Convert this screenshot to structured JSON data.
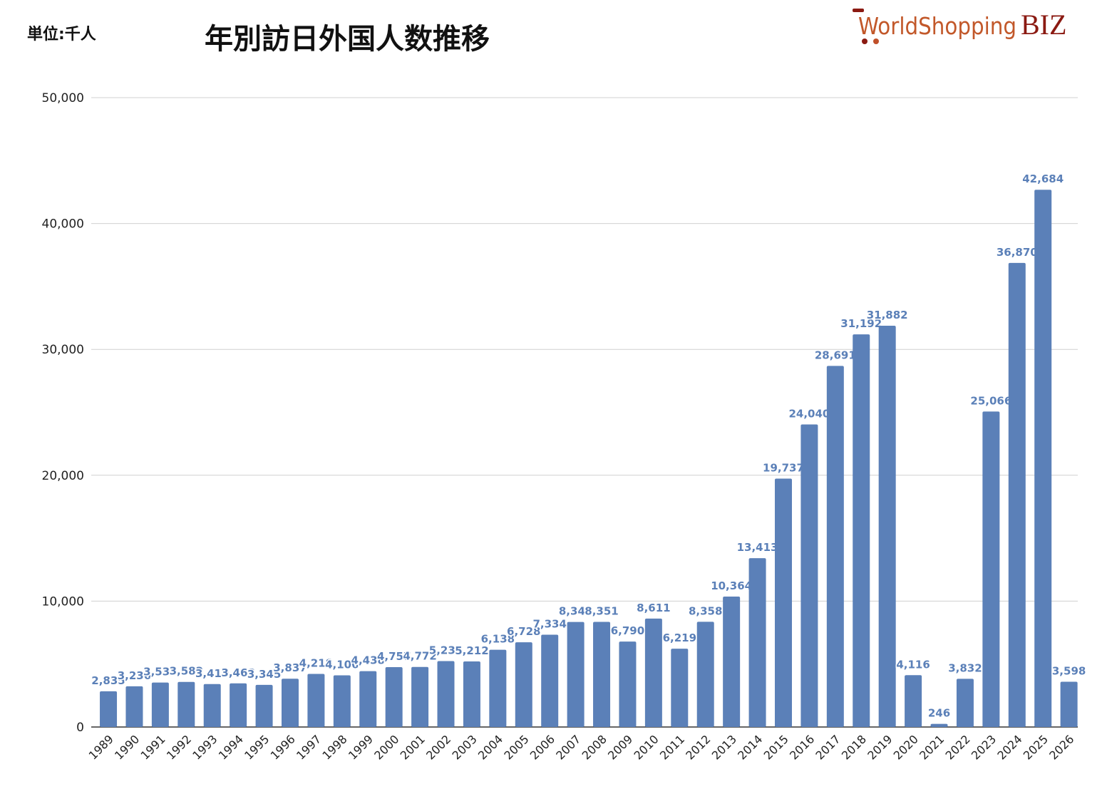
{
  "header": {
    "unit_label": "単位:千人",
    "logo_text": "WorldShoppingBIZ"
  },
  "colors": {
    "bar": "#5b80b8",
    "label": "#5b80b8",
    "grid": "#d0d0d0",
    "axis": "#333333"
  },
  "chart_data": {
    "type": "bar",
    "title": "年別訪日外国人数推移",
    "xlabel": "",
    "ylabel": "",
    "ylim": [
      0,
      50000
    ],
    "yticks": [
      "0",
      "10,000",
      "20,000",
      "30,000",
      "40,000",
      "50,000"
    ],
    "grid": true,
    "categories": [
      "1989",
      "1990",
      "1991",
      "1992",
      "1993",
      "1994",
      "1995",
      "1996",
      "1997",
      "1998",
      "1999",
      "2000",
      "2001",
      "2002",
      "2003",
      "2004",
      "2005",
      "2006",
      "2007",
      "2008",
      "2009",
      "2010",
      "2011",
      "2012",
      "2013",
      "2014",
      "2015",
      "2016",
      "2017",
      "2018",
      "2019",
      "2020",
      "2021",
      "2022",
      "2023",
      "2024",
      "2025",
      "2026"
    ],
    "values": [
      2835,
      3236,
      3533,
      3582,
      3410,
      3468,
      3345,
      3837,
      4218,
      4106,
      4438,
      4757,
      4772,
      5239,
      5212,
      6138,
      6728,
      7334,
      8348,
      8351,
      6790,
      8611,
      6219,
      8358,
      10364,
      13413,
      19737,
      24040,
      28691,
      31192,
      31882,
      4116,
      246,
      3832,
      25066,
      36870,
      42684,
      3598
    ],
    "data_labels": [
      "2,835",
      "3,236",
      "3,533",
      "3,582",
      "3,410",
      "3,468",
      "3,345",
      "3,837",
      "4,218",
      "4,106",
      "4,438",
      "4,757",
      "4,772",
      "5,239",
      "5,212",
      "6,138",
      "6,728",
      "7,334",
      "8,348",
      "8,351",
      "6,790",
      "8,611",
      "6,219",
      "8,358",
      "10,364",
      "13,413",
      "19,737",
      "24,040",
      "28,691",
      "31,192",
      "31,882",
      "4,116",
      "246",
      "3,832",
      "25,066",
      "36,870",
      "42,684",
      "3,598"
    ]
  }
}
